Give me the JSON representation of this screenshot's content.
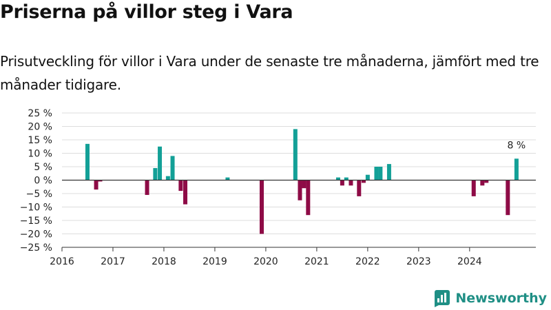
{
  "header": {
    "title": "Priserna på villor steg i Vara",
    "subtitle": "Prisutveckling för villor i Vara under de senaste tre månaderna, jämfört med tre månader tidigare."
  },
  "brand": {
    "name": "Newsworthy",
    "icon": "newsworthy-logo-icon",
    "color": "#1f8f85"
  },
  "colors": {
    "positive": "#13a097",
    "negative": "#8e0b46",
    "grid": "#dddddd",
    "zero_line": "#333333"
  },
  "chart_data": {
    "type": "bar",
    "title": "Priserna på villor steg i Vara",
    "subtitle": "Prisutveckling för villor i Vara under de senaste tre månaderna, jämfört med tre månader tidigare.",
    "xlabel": "",
    "ylabel": "",
    "xlim": [
      2016.0,
      2025.3
    ],
    "ylim": [
      -25,
      25
    ],
    "y_ticks": [
      25,
      20,
      15,
      10,
      5,
      0,
      -5,
      -10,
      -15,
      -20,
      -25
    ],
    "y_tick_labels": [
      "25 %",
      "20 %",
      "15 %",
      "10 %",
      "5 %",
      "0 %",
      "−5 %",
      "−10 %",
      "−15 %",
      "−20 %",
      "−25 %"
    ],
    "x_ticks": [
      2016,
      2017,
      2018,
      2019,
      2020,
      2021,
      2022,
      2023,
      2024
    ],
    "x_tick_labels": [
      "2016",
      "2017",
      "2018",
      "2019",
      "2020",
      "2021",
      "2022",
      "2023",
      "2024"
    ],
    "grid": true,
    "legend": "none",
    "unit": "%",
    "points": [
      {
        "x": 2016.5,
        "y": 13.5
      },
      {
        "x": 2016.67,
        "y": -3.5
      },
      {
        "x": 2016.75,
        "y": -0.5
      },
      {
        "x": 2017.67,
        "y": -5.5
      },
      {
        "x": 2017.83,
        "y": 4.5
      },
      {
        "x": 2017.92,
        "y": 12.5
      },
      {
        "x": 2018.08,
        "y": 1.5
      },
      {
        "x": 2018.17,
        "y": 9.0
      },
      {
        "x": 2018.33,
        "y": -4.0
      },
      {
        "x": 2018.42,
        "y": -9.0
      },
      {
        "x": 2019.25,
        "y": 1.0
      },
      {
        "x": 2019.92,
        "y": -20.0
      },
      {
        "x": 2020.58,
        "y": 19.0
      },
      {
        "x": 2020.67,
        "y": -7.5
      },
      {
        "x": 2020.75,
        "y": -3.0
      },
      {
        "x": 2020.83,
        "y": -13.0
      },
      {
        "x": 2021.42,
        "y": 1.0
      },
      {
        "x": 2021.5,
        "y": -2.0
      },
      {
        "x": 2021.58,
        "y": 1.0
      },
      {
        "x": 2021.67,
        "y": -2.0
      },
      {
        "x": 2021.83,
        "y": -6.0
      },
      {
        "x": 2021.92,
        "y": -1.0
      },
      {
        "x": 2022.0,
        "y": 2.0
      },
      {
        "x": 2022.17,
        "y": 5.0
      },
      {
        "x": 2022.25,
        "y": 5.0
      },
      {
        "x": 2022.42,
        "y": 6.0
      },
      {
        "x": 2024.08,
        "y": -6.0
      },
      {
        "x": 2024.25,
        "y": -2.0
      },
      {
        "x": 2024.33,
        "y": -1.0
      },
      {
        "x": 2024.75,
        "y": -13.0
      },
      {
        "x": 2024.92,
        "y": 8.0
      }
    ],
    "annotation": {
      "x": 2024.92,
      "y": 8.0,
      "text": "8 %"
    }
  }
}
